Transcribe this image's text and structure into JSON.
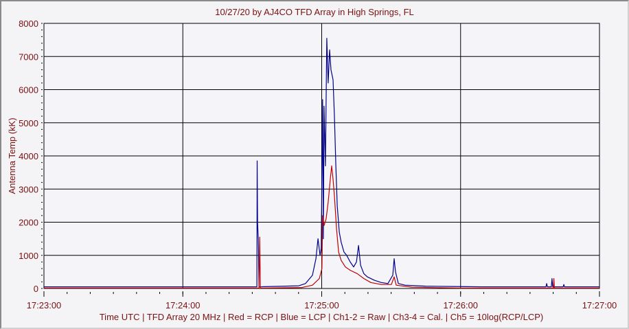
{
  "chart_data": {
    "type": "line",
    "title": "10/27/20  by  AJ4CO TFD Array  in  High Springs, FL",
    "xlabel": "Time UTC | TFD Array 20 MHz | Red = RCP | Blue = LCP | Ch1-2 = Raw | Ch3-4 = Cal. | Ch5 = 10log(RCP/LCP)",
    "ylabel": "Antenna Temp (kK)",
    "xlim": [
      "17:23:00",
      "17:27:00"
    ],
    "ylim": [
      0,
      8000
    ],
    "x_ticks": [
      "17:23:00",
      "17:24:00",
      "17:25:00",
      "17:26:00",
      "17:27:00"
    ],
    "y_ticks": [
      "0",
      "1000",
      "2000",
      "3000",
      "4000",
      "5000",
      "6000",
      "7000",
      "8000"
    ],
    "grid": true,
    "background": "#f4f4f9",
    "series": [
      {
        "label": "LCP",
        "color": "#00008b",
        "points": [
          [
            "17:23:00.0",
            50
          ],
          [
            "17:24:32.0",
            50
          ],
          [
            "17:24:32.1",
            3850
          ],
          [
            "17:24:32.3",
            2000
          ],
          [
            "17:24:32.6",
            1500
          ],
          [
            "17:24:32.9",
            50
          ],
          [
            "17:24:50.1",
            80
          ],
          [
            "17:24:53.0",
            150
          ],
          [
            "17:24:56.0",
            400
          ],
          [
            "17:24:57.5",
            900
          ],
          [
            "17:24:58.4",
            1500
          ],
          [
            "17:24:59.3",
            1000
          ],
          [
            "17:24:59.8",
            1200
          ],
          [
            "17:25:00.4",
            5700
          ],
          [
            "17:25:00.7",
            1500
          ],
          [
            "17:25:01.0",
            5500
          ],
          [
            "17:25:01.6",
            3700
          ],
          [
            "17:25:02.2",
            7550
          ],
          [
            "17:25:02.8",
            6200
          ],
          [
            "17:25:03.4",
            7200
          ],
          [
            "17:25:04.0",
            6600
          ],
          [
            "17:25:04.9",
            6300
          ],
          [
            "17:25:05.5",
            5200
          ],
          [
            "17:25:06.1",
            3700
          ],
          [
            "17:25:06.7",
            2500
          ],
          [
            "17:25:07.6",
            1700
          ],
          [
            "17:25:08.4",
            1400
          ],
          [
            "17:25:09.6",
            1100
          ],
          [
            "17:25:10.8",
            1000
          ],
          [
            "17:25:12.3",
            800
          ],
          [
            "17:25:13.8",
            650
          ],
          [
            "17:25:15.0",
            800
          ],
          [
            "17:25:15.9",
            1300
          ],
          [
            "17:25:16.8",
            700
          ],
          [
            "17:25:18.2",
            450
          ],
          [
            "17:25:19.7",
            350
          ],
          [
            "17:25:22.7",
            250
          ],
          [
            "17:25:25.7",
            180
          ],
          [
            "17:25:28.6",
            150
          ],
          [
            "17:25:30.7",
            400
          ],
          [
            "17:25:31.3",
            900
          ],
          [
            "17:25:31.9",
            500
          ],
          [
            "17:25:33.1",
            150
          ],
          [
            "17:25:36.0",
            100
          ],
          [
            "17:25:44.9",
            70
          ],
          [
            "17:25:56.8",
            60
          ],
          [
            "17:26:08.7",
            50
          ],
          [
            "17:26:36.9",
            50
          ],
          [
            "17:26:37.2",
            150
          ],
          [
            "17:26:37.5",
            50
          ],
          [
            "17:26:39.2",
            50
          ],
          [
            "17:26:39.5",
            300
          ],
          [
            "17:26:39.8",
            50
          ],
          [
            "17:26:44.3",
            50
          ],
          [
            "17:26:44.6",
            120
          ],
          [
            "17:26:44.9",
            50
          ],
          [
            "17:27:00.0",
            50
          ]
        ]
      },
      {
        "label": "RCP",
        "color": "#c00000",
        "points": [
          [
            "17:23:00.0",
            10
          ],
          [
            "17:24:32.9",
            10
          ],
          [
            "17:24:33.2",
            1550
          ],
          [
            "17:24:33.5",
            10
          ],
          [
            "17:24:51.5",
            30
          ],
          [
            "17:24:56.0",
            100
          ],
          [
            "17:24:59.0",
            300
          ],
          [
            "17:25:00.1",
            600
          ],
          [
            "17:25:00.4",
            2200
          ],
          [
            "17:25:01.0",
            1900
          ],
          [
            "17:25:01.9",
            2100
          ],
          [
            "17:25:02.8",
            2600
          ],
          [
            "17:25:03.7",
            3300
          ],
          [
            "17:25:04.3",
            3700
          ],
          [
            "17:25:04.9",
            3300
          ],
          [
            "17:25:05.5",
            2800
          ],
          [
            "17:25:06.4",
            1800
          ],
          [
            "17:25:07.3",
            1100
          ],
          [
            "17:25:08.4",
            850
          ],
          [
            "17:25:10.2",
            650
          ],
          [
            "17:25:12.3",
            550
          ],
          [
            "17:25:15.3",
            450
          ],
          [
            "17:25:18.2",
            300
          ],
          [
            "17:25:21.2",
            180
          ],
          [
            "17:25:25.7",
            120
          ],
          [
            "17:25:30.1",
            120
          ],
          [
            "17:25:31.3",
            350
          ],
          [
            "17:25:32.2",
            100
          ],
          [
            "17:25:39.0",
            40
          ],
          [
            "17:26:00.0",
            10
          ],
          [
            "17:26:40.1",
            10
          ],
          [
            "17:26:40.3",
            300
          ],
          [
            "17:26:40.5",
            10
          ],
          [
            "17:27:00.0",
            10
          ]
        ]
      }
    ]
  }
}
